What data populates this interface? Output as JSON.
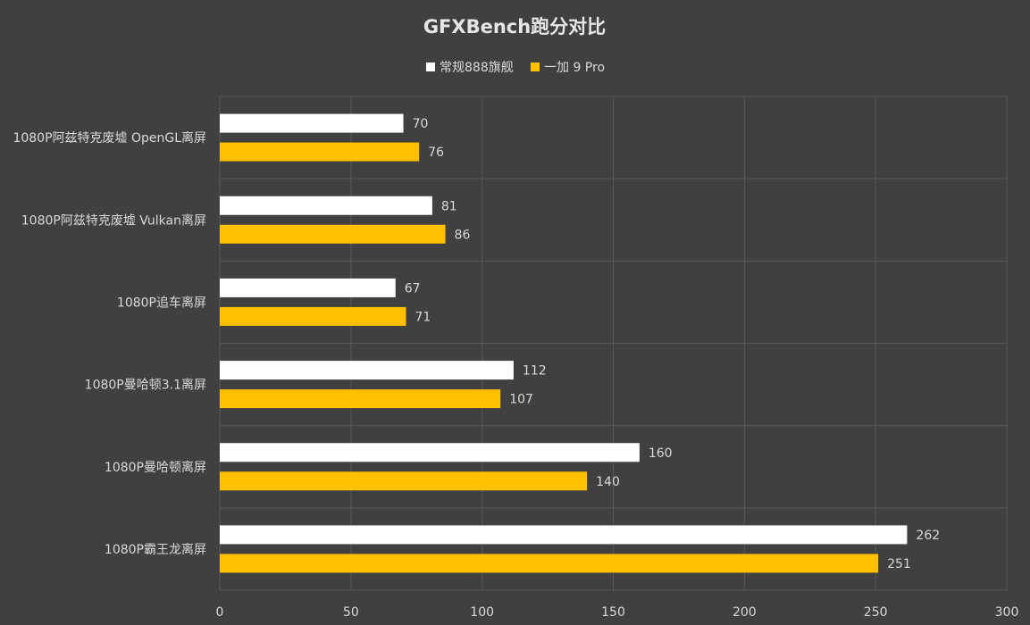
{
  "chart_data": {
    "type": "bar",
    "orientation": "horizontal",
    "title": "GFXBench跑分对比",
    "categories": [
      "1080P阿兹特克废墟 OpenGL离屏",
      "1080P阿兹特克废墟 Vulkan离屏",
      "1080P追车离屏",
      "1080P曼哈顿3.1离屏",
      "1080P曼哈顿离屏",
      "1080P霸王龙离屏"
    ],
    "series": [
      {
        "name": "常规888旗舰",
        "color": "#ffffff",
        "values": [
          70,
          81,
          67,
          112,
          160,
          262
        ]
      },
      {
        "name": "一加 9 Pro",
        "color": "#ffc000",
        "values": [
          76,
          86,
          71,
          107,
          140,
          251
        ]
      }
    ],
    "xlim": [
      0,
      300
    ],
    "xticks": [
      "0",
      "50",
      "100",
      "150",
      "200",
      "250",
      "300"
    ],
    "xlabel": "",
    "ylabel": "",
    "grid": true,
    "legend_position": "top",
    "background": "#404040",
    "grid_color": "#595959"
  }
}
